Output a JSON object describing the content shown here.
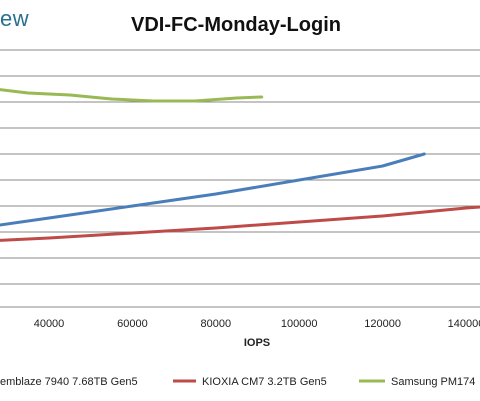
{
  "brand": {
    "fragment": "ew"
  },
  "chart_data": {
    "type": "line",
    "title": "VDI-FC-Monday-Login",
    "xlabel": "IOPS",
    "ylabel": "",
    "xlim": [
      25000,
      150000
    ],
    "x_ticks": [
      40000,
      60000,
      80000,
      100000,
      120000,
      140000
    ],
    "x_tick_labels": [
      "40000",
      "60000",
      "80000",
      "100000",
      "120000",
      "140000"
    ],
    "grid": true,
    "legend_position": "bottom",
    "series": [
      {
        "name": "...emblaze 7940 7.68TB Gen5",
        "color": "#4a7ebb",
        "points": [
          [
            25000,
            227
          ],
          [
            40000,
            218
          ],
          [
            60000,
            206
          ],
          [
            80000,
            194
          ],
          [
            100000,
            180
          ],
          [
            120000,
            166
          ],
          [
            130000,
            154
          ]
        ]
      },
      {
        "name": "KIOXIA CM7 3.2TB Gen5",
        "color": "#be4b48",
        "points": [
          [
            25000,
            241
          ],
          [
            40000,
            238
          ],
          [
            60000,
            233
          ],
          [
            80000,
            228
          ],
          [
            100000,
            222
          ],
          [
            120000,
            216
          ],
          [
            140000,
            208
          ],
          [
            150000,
            205
          ]
        ]
      },
      {
        "name": "Samsung PM174...",
        "color": "#98b954",
        "points": [
          [
            25000,
            88
          ],
          [
            35000,
            93
          ],
          [
            45000,
            95
          ],
          [
            55000,
            99
          ],
          [
            65000,
            101
          ],
          [
            75000,
            101
          ],
          [
            85000,
            98
          ],
          [
            91000,
            97
          ]
        ]
      }
    ]
  }
}
